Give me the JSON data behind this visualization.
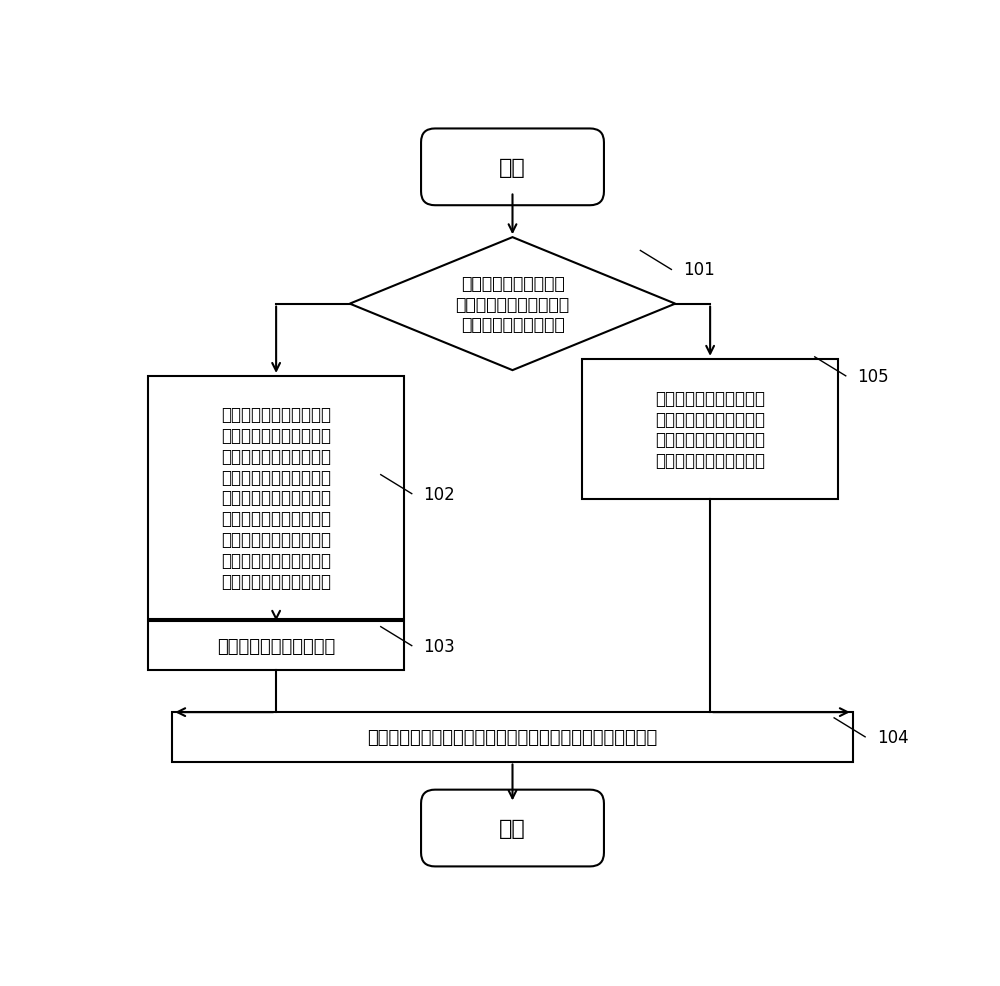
{
  "bg_color": "#ffffff",
  "line_color": "#000000",
  "text_color": "#000000",
  "start_text": "开始",
  "end_text": "结束",
  "decision_text": "当收到来自文件系统的\n数据请求时，判断数据请\n求是写请求还是读请求",
  "box102_text": "当判断是数据读请求时，\n根据数据的逻辑页地址依\n次在一级地址映射表、二\n级地址映射表和闪存地址\n区中查找直至找到包含数\n据的逻辑页地址的地址映\n射表项，并从该地址映射\n表项中获取该数据的逻辑\n页地址对应的物理页地址",
  "box105_text": "当判断是数据写请求时，\n根据数据的逻辑页地址将\n数据写入该数据的逻辑页\n地址对应的物理页地址中",
  "box103_text": "从该物理页地址读取数据",
  "box104_text": "根据数据的逻辑页地址和对应物理页地址更新一级地址映射表",
  "label_101": "101",
  "label_102": "102",
  "label_103": "103",
  "label_104": "104",
  "label_105": "105",
  "lw": 1.5,
  "arrow_mutation_scale": 14
}
